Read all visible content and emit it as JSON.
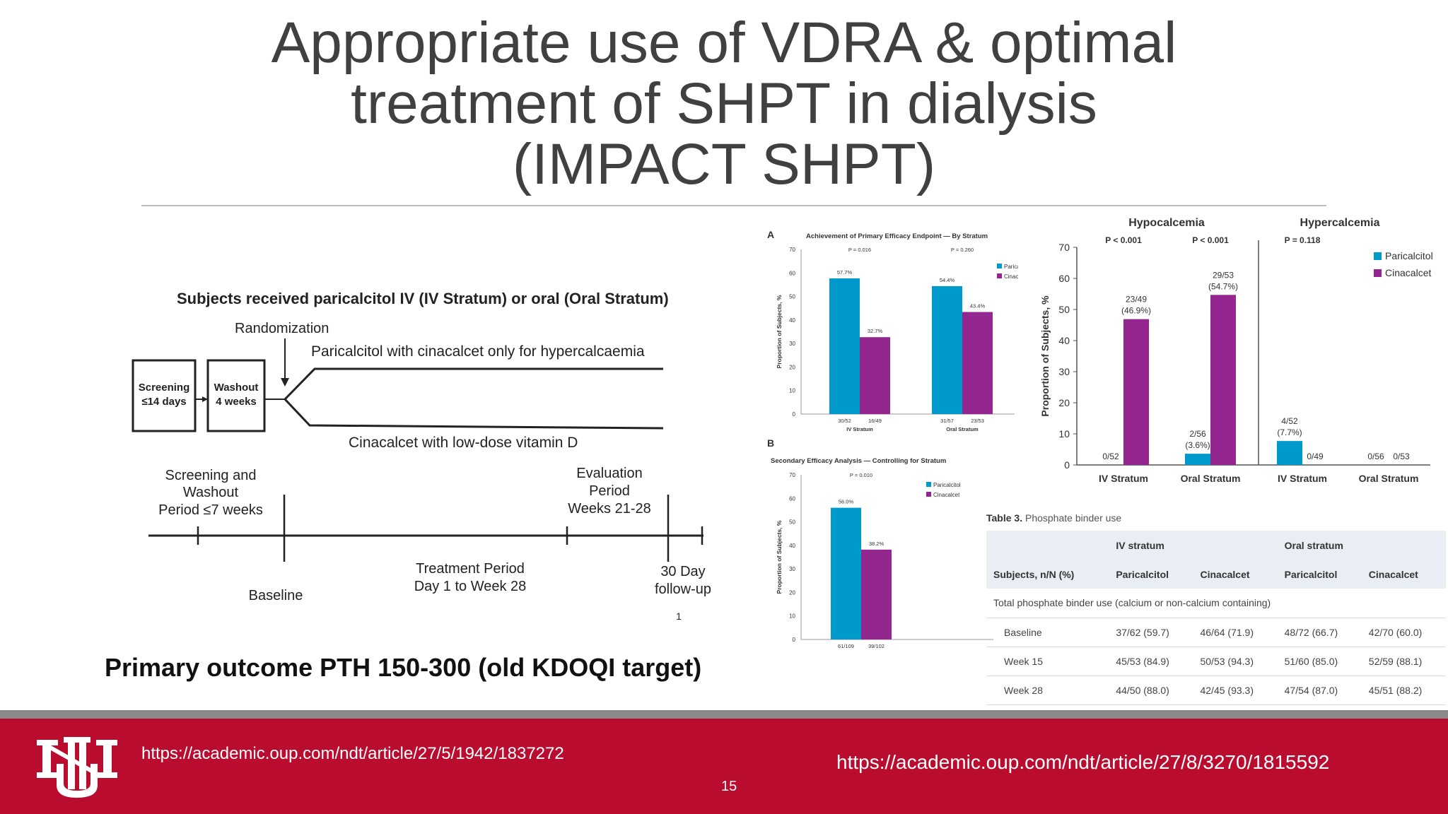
{
  "slide": {
    "title_lines": [
      "Appropriate use of VDRA & optimal",
      "treatment of SHPT in dialysis",
      "(IMPACT SHPT)"
    ],
    "primary_outcome": "Primary outcome PTH 150-300 (old KDOQI target)",
    "page_number": "15",
    "link_left": "https://academic.oup.com/ndt/article/27/5/1942/1837272",
    "link_right": "https://academic.oup.com/ndt/article/27/8/3270/1815592",
    "logo_text": "UNM",
    "colors": {
      "accent_red": "#ba0c2f",
      "paricalcitol": "#0099cc",
      "cinacalcet": "#93278f"
    }
  },
  "diagram": {
    "header": "Subjects received paricalcitol IV (IV Stratum) or oral (Oral Stratum)",
    "randomization": "Randomization",
    "arm_top": "Paricalcitol with cinacalcet only for hypercalcaemia",
    "arm_bottom": "Cinacalcet with low-dose vitamin D",
    "box1": [
      "Screening",
      "≤14 days"
    ],
    "box2": [
      "Washout",
      "4 weeks"
    ],
    "screen_washout": [
      "Screening and",
      "Washout",
      "Period ≤7 weeks"
    ],
    "evaluation": [
      "Evaluation",
      "Period",
      "Weeks 21-28"
    ],
    "treatment": [
      "Treatment Period",
      "Day 1 to Week 28"
    ],
    "followup": [
      "30 Day",
      "follow-up"
    ],
    "baseline": "Baseline",
    "footnote": "1"
  },
  "chart_data": [
    {
      "type": "bar",
      "panel": "A",
      "title": "Achievement of Primary Efficacy Endpoint — By Stratum",
      "ylabel": "Proportion of Subjects, %",
      "ylim": [
        0,
        70
      ],
      "yticks": [
        0,
        10,
        20,
        30,
        40,
        50,
        60,
        70
      ],
      "categories": [
        "IV Stratum",
        "Oral Stratum"
      ],
      "pvalues": [
        "P = 0.016",
        "P = 0.260"
      ],
      "series": [
        {
          "name": "Paricalcitol",
          "values": [
            57.7,
            54.4
          ],
          "value_labels": [
            "57.7%",
            "54.4%"
          ],
          "counts": [
            "30/52",
            "31/57"
          ]
        },
        {
          "name": "Cinacalcet",
          "values": [
            32.7,
            43.4
          ],
          "value_labels": [
            "32.7%",
            "43.4%"
          ],
          "counts": [
            "16/49",
            "23/53"
          ]
        }
      ],
      "legend": "top-right"
    },
    {
      "type": "bar",
      "panel": "B",
      "title": "Secondary Efficacy Analysis — Controlling for Stratum",
      "ylabel": "Proportion of Subjects, %",
      "ylim": [
        0,
        70
      ],
      "yticks": [
        0,
        10,
        20,
        30,
        40,
        50,
        60,
        70
      ],
      "pvalue": "P = 0.010",
      "series": [
        {
          "name": "Paricalcitol",
          "values": [
            56.0
          ],
          "value_labels": [
            "56.0%"
          ],
          "counts": [
            "61/109"
          ]
        },
        {
          "name": "Cinacalcet",
          "values": [
            38.2
          ],
          "value_labels": [
            "38.2%"
          ],
          "counts": [
            "39/102"
          ]
        }
      ],
      "legend": "top-right"
    },
    {
      "type": "bar",
      "ylabel": "Proportion of Subjects, %",
      "ylim": [
        0,
        70
      ],
      "yticks": [
        0,
        10,
        20,
        30,
        40,
        50,
        60,
        70
      ],
      "groups": [
        "Hypocalcemia",
        "Hypercalcemia"
      ],
      "categories": [
        "IV Stratum",
        "Oral Stratum",
        "IV Stratum",
        "Oral Stratum"
      ],
      "pvalues": [
        "P < 0.001",
        "P < 0.001",
        "P = 0.118",
        ""
      ],
      "series": [
        {
          "name": "Paricalcitol",
          "values": [
            0,
            3.6,
            7.7,
            0
          ],
          "labels": [
            [
              "0/52"
            ],
            [
              "2/56",
              "(3.6%)"
            ],
            [
              "4/52",
              "(7.7%)"
            ],
            [
              "0/56"
            ]
          ]
        },
        {
          "name": "Cinacalcet",
          "values": [
            46.9,
            54.7,
            0,
            0
          ],
          "labels": [
            [
              "23/49",
              "(46.9%)"
            ],
            [
              "29/53",
              "(54.7%)"
            ],
            [
              "0/49"
            ],
            [
              "0/53"
            ]
          ]
        }
      ],
      "legend": "top-right"
    }
  ],
  "table3": {
    "caption_label": "Table 3.",
    "caption_text": "Phosphate binder use",
    "group_headers": [
      "IV stratum",
      "Oral stratum"
    ],
    "col_headers": [
      "Subjects, n/N (%)",
      "Paricalcitol",
      "Cinacalcet",
      "Paricalcitol",
      "Cinacalcet"
    ],
    "section": "Total phosphate binder use (calcium or non-calcium containing)",
    "rows": [
      [
        "Baseline",
        "37/62 (59.7)",
        "46/64 (71.9)",
        "48/72 (66.7)",
        "42/70 (60.0)"
      ],
      [
        "Week 15",
        "45/53 (84.9)",
        "50/53 (94.3)",
        "51/60 (85.0)",
        "52/59 (88.1)"
      ],
      [
        "Week 28",
        "44/50 (88.0)",
        "42/45 (93.3)",
        "47/54 (87.0)",
        "45/51 (88.2)"
      ]
    ]
  }
}
